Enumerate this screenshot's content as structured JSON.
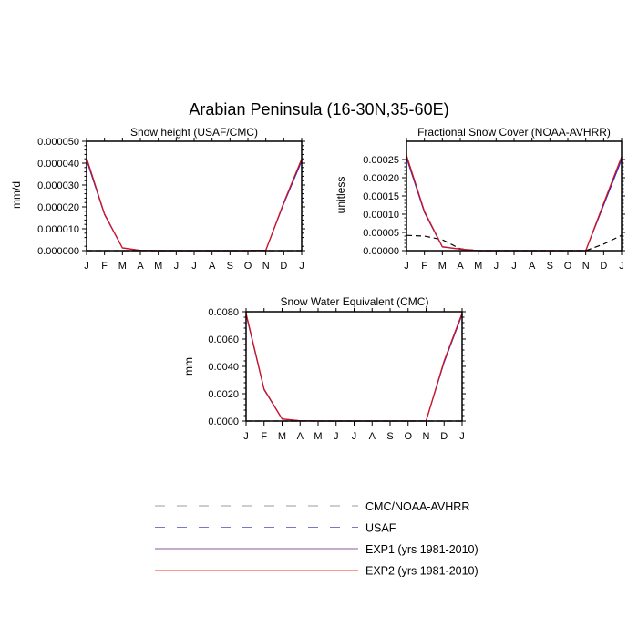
{
  "figure_title": "Arabian Peninsula (16-30N,35-60E)",
  "colors": {
    "obs": "#000000",
    "exp1": "#2a2ad0",
    "exp2": "#e01010",
    "legend_obs": "#9a9aa6",
    "legend_usaf": "#7878c8",
    "legend_exp1": "#8a5a98",
    "legend_exp2": "#f4a090"
  },
  "legend": [
    {
      "label": "CMC/NOAA-AVHRR",
      "style": "dashed",
      "color_key": "legend_obs"
    },
    {
      "label": "USAF",
      "style": "dashed",
      "color_key": "legend_usaf"
    },
    {
      "label": "EXP1 (yrs 1981-2010)",
      "style": "solid",
      "color_key": "legend_exp1"
    },
    {
      "label": "EXP2 (yrs 1981-2010)",
      "style": "solid",
      "color_key": "legend_exp2"
    }
  ],
  "chart_data": [
    {
      "type": "line",
      "title": "Snow height (USAF/CMC)",
      "ylabel": "mm/d",
      "categories": [
        "J",
        "F",
        "M",
        "A",
        "M",
        "J",
        "J",
        "A",
        "S",
        "O",
        "N",
        "D",
        "J"
      ],
      "ylim": [
        0,
        5e-05
      ],
      "yticks": [
        "0.000000",
        "0.000010",
        "0.000020",
        "0.000030",
        "0.000040",
        "0.000050"
      ],
      "series": [
        {
          "name": "USAF",
          "style": "dashed",
          "color_key": "obs",
          "values": [
            0,
            0,
            0,
            0,
            0,
            0,
            0,
            0,
            0,
            0,
            0,
            0,
            0
          ]
        },
        {
          "name": "EXP1 (yrs 1981-2010)",
          "style": "solid",
          "color_key": "exp1",
          "values": [
            4.15e-05,
            1.65e-05,
            1.2e-06,
            1e-07,
            0,
            0,
            0,
            0,
            0,
            0,
            2e-07,
            2.15e-05,
            4.1e-05
          ]
        },
        {
          "name": "EXP2 (yrs 1981-2010)",
          "style": "solid",
          "color_key": "exp2",
          "values": [
            4.25e-05,
            1.68e-05,
            1.3e-06,
            1e-07,
            0,
            0,
            0,
            0,
            0,
            0,
            2e-07,
            2.2e-05,
            4.2e-05
          ]
        }
      ]
    },
    {
      "type": "line",
      "title": "Fractional Snow Cover (NOAA-AVHRR)",
      "ylabel": "unitless",
      "categories": [
        "J",
        "F",
        "M",
        "A",
        "M",
        "J",
        "J",
        "A",
        "S",
        "O",
        "N",
        "D",
        "J"
      ],
      "ylim": [
        0,
        0.0003
      ],
      "yticks": [
        "0.00000",
        "0.00005",
        "0.00010",
        "0.00015",
        "0.00020",
        "0.00025"
      ],
      "series": [
        {
          "name": "CMC/NOAA-AVHRR",
          "style": "dashed",
          "color_key": "obs",
          "values": [
            4.2e-05,
            4e-05,
            3e-05,
            5e-06,
            0,
            0,
            0,
            0,
            0,
            0,
            0,
            1.8e-05,
            4.2e-05
          ]
        },
        {
          "name": "EXP1 (yrs 1981-2010)",
          "style": "solid",
          "color_key": "exp1",
          "values": [
            0.000255,
            0.000105,
            1e-05,
            4e-06,
            0,
            0,
            0,
            0,
            0,
            0,
            0,
            0.000125,
            0.00025
          ]
        },
        {
          "name": "EXP2 (yrs 1981-2010)",
          "style": "solid",
          "color_key": "exp2",
          "values": [
            0.000262,
            0.000108,
            1.1e-05,
            4e-06,
            0,
            0,
            0,
            0,
            0,
            0,
            0,
            0.00013,
            0.000258
          ]
        }
      ]
    },
    {
      "type": "line",
      "title": "Snow Water Equivalent (CMC)",
      "ylabel": "mm",
      "categories": [
        "J",
        "F",
        "M",
        "A",
        "M",
        "J",
        "J",
        "A",
        "S",
        "O",
        "N",
        "D",
        "J"
      ],
      "ylim": [
        0,
        0.008
      ],
      "yticks": [
        "0.0000",
        "0.0020",
        "0.0040",
        "0.0060",
        "0.0080"
      ],
      "series": [
        {
          "name": "CMC/NOAA-AVHRR",
          "style": "dashed",
          "color_key": "obs",
          "values": [
            0,
            0,
            0,
            0,
            0,
            0,
            0,
            0,
            0,
            0,
            0,
            0,
            0
          ]
        },
        {
          "name": "EXP1 (yrs 1981-2010)",
          "style": "solid",
          "color_key": "exp1",
          "values": [
            0.0078,
            0.0023,
            0.00015,
            2e-05,
            0,
            0,
            0,
            0,
            0,
            0,
            1e-05,
            0.0043,
            0.0078
          ]
        },
        {
          "name": "EXP2 (yrs 1981-2010)",
          "style": "solid",
          "color_key": "exp2",
          "values": [
            0.0079,
            0.00235,
            0.00016,
            2e-05,
            0,
            0,
            0,
            0,
            0,
            0,
            1e-05,
            0.0044,
            0.0079
          ]
        }
      ]
    }
  ]
}
